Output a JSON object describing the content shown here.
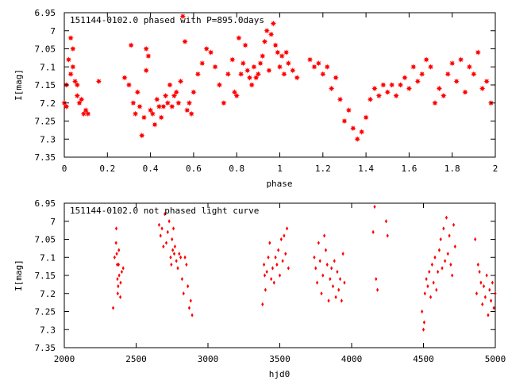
{
  "chart_data": [
    {
      "type": "scatter",
      "title": "151144-0102.0 phased with P=895.0days",
      "xlabel": "phase",
      "ylabel": "I[mag]",
      "xlim": [
        0,
        2
      ],
      "ylim": [
        6.95,
        7.35
      ],
      "y_inverted": true,
      "xticks": [
        "0",
        "0.2",
        "0.4",
        "0.6",
        "0.8",
        "1",
        "1.2",
        "1.4",
        "1.6",
        "1.8",
        "2"
      ],
      "yticks": [
        "6.95",
        "7",
        "7.05",
        "7.1",
        "7.15",
        "7.2",
        "7.25",
        "7.3",
        "7.35"
      ],
      "marker": "star",
      "color": "#ff0000",
      "x": [
        0.0,
        0.01,
        0.01,
        0.02,
        0.03,
        0.03,
        0.04,
        0.04,
        0.05,
        0.06,
        0.06,
        0.07,
        0.08,
        0.09,
        0.1,
        0.11,
        0.16,
        0.28,
        0.3,
        0.31,
        0.32,
        0.33,
        0.34,
        0.35,
        0.36,
        0.37,
        0.38,
        0.38,
        0.39,
        0.4,
        0.41,
        0.42,
        0.43,
        0.44,
        0.45,
        0.46,
        0.47,
        0.48,
        0.49,
        0.5,
        0.51,
        0.52,
        0.53,
        0.54,
        0.55,
        0.56,
        0.57,
        0.58,
        0.59,
        0.6,
        0.62,
        0.64,
        0.66,
        0.68,
        0.7,
        0.72,
        0.74,
        0.76,
        0.78,
        0.79,
        0.8,
        0.81,
        0.82,
        0.83,
        0.84,
        0.85,
        0.86,
        0.87,
        0.88,
        0.89,
        0.9,
        0.91,
        0.92,
        0.93,
        0.94,
        0.95,
        0.96,
        0.97,
        0.98,
        0.99,
        1.0,
        1.01,
        1.02,
        1.03,
        1.04,
        1.06,
        1.08,
        1.14,
        1.16,
        1.18,
        1.2,
        1.22,
        1.24,
        1.26,
        1.28,
        1.3,
        1.32,
        1.34,
        1.36,
        1.38,
        1.4,
        1.42,
        1.44,
        1.46,
        1.48,
        1.5,
        1.52,
        1.54,
        1.56,
        1.58,
        1.6,
        1.62,
        1.64,
        1.66,
        1.68,
        1.7,
        1.72,
        1.74,
        1.76,
        1.78,
        1.8,
        1.82,
        1.84,
        1.86,
        1.88,
        1.9,
        1.92,
        1.94,
        1.96,
        1.98
      ],
      "y": [
        7.2,
        7.15,
        7.21,
        7.08,
        7.02,
        7.12,
        7.05,
        7.1,
        7.14,
        7.15,
        7.18,
        7.2,
        7.19,
        7.23,
        7.22,
        7.23,
        7.14,
        7.13,
        7.15,
        7.04,
        7.2,
        7.23,
        7.17,
        7.21,
        7.29,
        7.24,
        7.11,
        7.05,
        7.07,
        7.22,
        7.23,
        7.26,
        7.19,
        7.21,
        7.24,
        7.21,
        7.18,
        7.2,
        7.15,
        7.21,
        7.18,
        7.17,
        7.2,
        7.14,
        6.96,
        7.03,
        7.22,
        7.2,
        7.23,
        7.17,
        7.12,
        7.09,
        7.05,
        7.06,
        7.1,
        7.15,
        7.2,
        7.12,
        7.08,
        7.17,
        7.18,
        7.02,
        7.12,
        7.09,
        7.04,
        7.11,
        7.13,
        7.15,
        7.1,
        7.13,
        7.12,
        7.09,
        7.07,
        7.03,
        7.0,
        7.11,
        7.01,
        6.98,
        7.04,
        7.06,
        7.1,
        7.07,
        7.12,
        7.06,
        7.09,
        7.11,
        7.13,
        7.08,
        7.1,
        7.09,
        7.12,
        7.1,
        7.16,
        7.13,
        7.19,
        7.25,
        7.22,
        7.27,
        7.3,
        7.28,
        7.24,
        7.19,
        7.16,
        7.18,
        7.15,
        7.17,
        7.15,
        7.18,
        7.15,
        7.13,
        7.16,
        7.1,
        7.14,
        7.12,
        7.08,
        7.1,
        7.2,
        7.16,
        7.18,
        7.12,
        7.09,
        7.14,
        7.08,
        7.17,
        7.1,
        7.12,
        7.06,
        7.16,
        7.14,
        7.2
      ]
    },
    {
      "type": "scatter",
      "title": "151144-0102.0 not phased light curve",
      "xlabel": "hjd0",
      "ylabel": "I[mag]",
      "xlim": [
        2000,
        5000
      ],
      "ylim": [
        6.95,
        7.35
      ],
      "y_inverted": true,
      "xticks": [
        "2000",
        "2500",
        "3000",
        "3500",
        "4000",
        "4500",
        "5000"
      ],
      "yticks": [
        "6.95",
        "7",
        "7.05",
        "7.1",
        "7.15",
        "7.2",
        "7.25",
        "7.3",
        "7.35"
      ],
      "marker": "diamond",
      "color": "#ff0000",
      "x": [
        2340,
        2350,
        2360,
        2362,
        2365,
        2368,
        2370,
        2372,
        2375,
        2378,
        2380,
        2382,
        2390,
        2392,
        2400,
        2410,
        2660,
        2670,
        2680,
        2690,
        2700,
        2710,
        2720,
        2730,
        2740,
        2745,
        2750,
        2755,
        2760,
        2765,
        2770,
        2780,
        2790,
        2800,
        2810,
        2820,
        2830,
        2840,
        2850,
        2860,
        2870,
        2880,
        2890,
        3380,
        3390,
        3395,
        3400,
        3410,
        3420,
        3430,
        3440,
        3450,
        3460,
        3470,
        3480,
        3490,
        3500,
        3510,
        3520,
        3530,
        3540,
        3550,
        3560,
        3740,
        3750,
        3760,
        3770,
        3780,
        3790,
        3800,
        3810,
        3820,
        3830,
        3840,
        3850,
        3860,
        3870,
        3880,
        3890,
        3900,
        3910,
        3920,
        3930,
        3940,
        3950,
        4150,
        4160,
        4170,
        4180,
        4240,
        4250,
        4490,
        4500,
        4505,
        4510,
        4520,
        4530,
        4540,
        4550,
        4560,
        4570,
        4580,
        4590,
        4600,
        4610,
        4620,
        4630,
        4640,
        4650,
        4660,
        4670,
        4680,
        4690,
        4700,
        4710,
        4720,
        4860,
        4870,
        4880,
        4890,
        4900,
        4910,
        4920,
        4930,
        4940,
        4950,
        4960,
        4970,
        4980,
        4990,
        5000
      ],
      "y": [
        7.24,
        7.1,
        7.06,
        7.02,
        7.09,
        7.12,
        7.16,
        7.2,
        7.18,
        7.12,
        7.08,
        7.15,
        7.21,
        7.17,
        7.14,
        7.13,
        7.01,
        7.04,
        7.02,
        7.07,
        6.98,
        7.06,
        7.03,
        7.0,
        7.1,
        7.12,
        7.05,
        7.08,
        7.02,
        7.09,
        7.07,
        7.11,
        7.13,
        7.09,
        7.1,
        7.16,
        7.2,
        7.1,
        7.12,
        7.18,
        7.24,
        7.22,
        7.26,
        7.23,
        7.12,
        7.15,
        7.19,
        7.14,
        7.1,
        7.06,
        7.16,
        7.13,
        7.17,
        7.1,
        7.12,
        7.08,
        7.15,
        7.05,
        7.11,
        7.04,
        7.09,
        7.02,
        7.13,
        7.1,
        7.13,
        7.17,
        7.06,
        7.11,
        7.2,
        7.15,
        7.04,
        7.08,
        7.12,
        7.22,
        7.16,
        7.13,
        7.18,
        7.11,
        7.21,
        7.14,
        7.19,
        7.16,
        7.22,
        7.09,
        7.17,
        7.03,
        6.96,
        7.16,
        7.19,
        7.0,
        7.04,
        7.25,
        7.3,
        7.28,
        7.2,
        7.16,
        7.18,
        7.14,
        7.21,
        7.12,
        7.17,
        7.1,
        7.19,
        7.14,
        7.08,
        7.05,
        7.13,
        7.02,
        7.11,
        6.99,
        7.09,
        7.04,
        7.12,
        7.15,
        7.01,
        7.07,
        7.05,
        7.2,
        7.12,
        7.14,
        7.17,
        7.23,
        7.18,
        7.21,
        7.15,
        7.26,
        7.19,
        7.22,
        7.17,
        7.24,
        7.2
      ]
    }
  ]
}
